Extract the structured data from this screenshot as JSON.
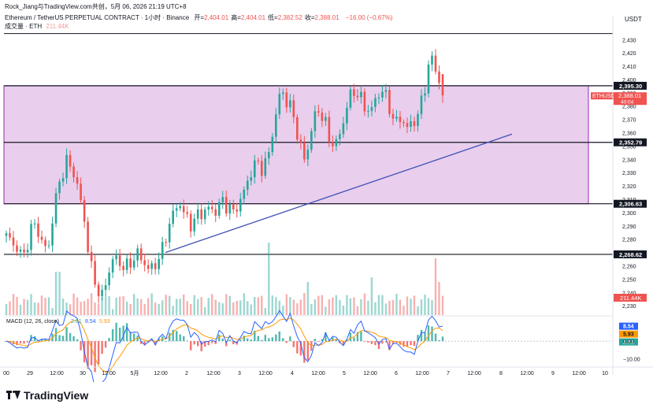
{
  "header": {
    "author_line": "Rock_Jiang与TradingView.com共创，5月 06, 2026 21:19 UTC+8",
    "symbol_line": "Ethereum / TetherUS PERPETUAL CONTRACT · 1小时 · Binance",
    "ohlc": [
      {
        "label": "开=",
        "value": "2,404.01"
      },
      {
        "label": "高=",
        "value": "2,404.01"
      },
      {
        "label": "低=",
        "value": "2,382.52"
      },
      {
        "label": "收=",
        "value": "2,388.01"
      }
    ],
    "change": "−16.00 (−0.67%)",
    "volume_line": "成交量 · ETH",
    "volume_value": "211.44K"
  },
  "currency": "USDT",
  "footer": {
    "brand": "TradingView"
  },
  "colors": {
    "up": "#26a69a",
    "down": "#ef5350",
    "zone_fill": "#e1bee7",
    "zone_border": "#9c27b0",
    "trendline": "#3f51b5",
    "macd_line": "#2962ff",
    "signal_line": "#ff9800"
  },
  "chart_data": [
    {
      "type": "candlestick",
      "title": "Ethereum / TetherUS PERPETUAL CONTRACT · 1小时 · Binance",
      "ylim": [
        2223,
        2442
      ],
      "y_ticks": [
        2230,
        2240,
        2250,
        2260,
        2270,
        2280,
        2290,
        2300,
        2310,
        2320,
        2330,
        2340,
        2350,
        2360,
        2370,
        2380,
        2390,
        2400,
        2410,
        2420,
        2430
      ],
      "x_ticks": [
        "00",
        "29",
        "12:00",
        "30",
        "12:00",
        "5月",
        "12:00",
        "2",
        "12:00",
        "3",
        "12:00",
        "4",
        "12:00",
        "5",
        "12:00",
        "6",
        "12:00",
        "7",
        "12:00",
        "8",
        "12:00",
        "9",
        "12:00",
        "10"
      ],
      "close_path": [
        2282,
        2278,
        2271,
        2268,
        2286,
        2292,
        2276,
        2272,
        2304,
        2325,
        2338,
        2334,
        2318,
        2296,
        2262,
        2245,
        2236,
        2254,
        2267,
        2262,
        2258,
        2264,
        2269,
        2263,
        2256,
        2262,
        2270,
        2288,
        2300,
        2308,
        2296,
        2291,
        2298,
        2301,
        2303,
        2301,
        2309,
        2305,
        2300,
        2308,
        2318,
        2332,
        2338,
        2332,
        2346,
        2372,
        2393,
        2383,
        2374,
        2352,
        2338,
        2362,
        2378,
        2372,
        2356,
        2350,
        2361,
        2381,
        2392,
        2388,
        2379,
        2376,
        2388,
        2392,
        2381,
        2366,
        2372,
        2363,
        2368,
        2374,
        2395,
        2418,
        2406,
        2388.01
      ],
      "horizontal_levels": [
        {
          "value": 2434.5,
          "label": ""
        },
        {
          "value": 2395.3,
          "label": "2,395.30"
        },
        {
          "value": 2352.79,
          "label": "2,352.79"
        },
        {
          "value": 2306.63,
          "label": "2,306.63"
        },
        {
          "value": 2268.62,
          "label": "2,268.62"
        }
      ],
      "zone": {
        "top": 2395.3,
        "bottom": 2306.63
      },
      "trendline": {
        "from": 2270,
        "to": 2359
      },
      "price_tag": {
        "symbol": "ETHUSDT.P",
        "price": "2,388.01",
        "countdown": "40:04"
      }
    },
    {
      "type": "bar",
      "title": "Volume",
      "last_value": "211.44K"
    },
    {
      "type": "line",
      "title": "MACD (12, 26, close)",
      "legend": [
        {
          "name": "MACD",
          "value": "8.54"
        },
        {
          "name": "Signal",
          "value": "5.93"
        },
        {
          "name": "Histogram",
          "value": "2.61"
        }
      ],
      "y_ticks": [
        "0.00",
        "−10.00"
      ],
      "y_tick_values": [
        0,
        -10
      ],
      "last_values": {
        "macd": 8.54,
        "signal": 5.93,
        "hist": 2.61
      }
    }
  ]
}
